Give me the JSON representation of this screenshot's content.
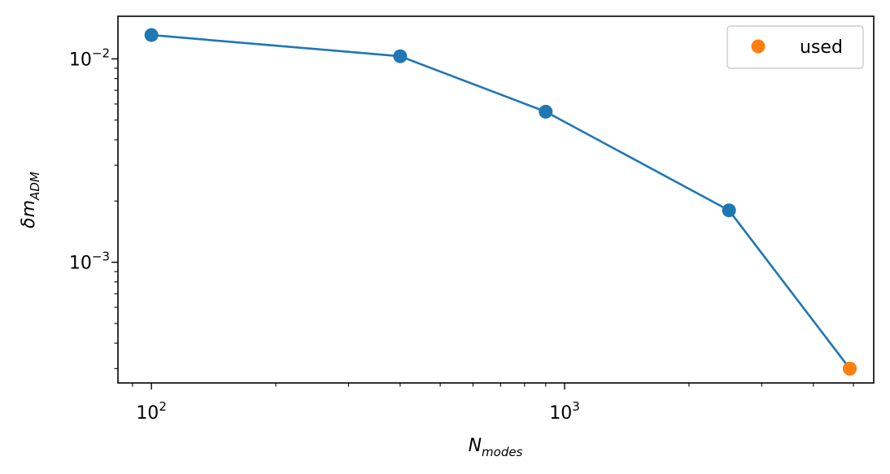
{
  "chart_data": {
    "type": "line",
    "x_scale": "log",
    "y_scale": "log",
    "xlim": [
      83,
      5600
    ],
    "ylim": [
      0.000255,
      0.0162
    ],
    "xlabel": {
      "base": "N",
      "sub": "modes"
    },
    "ylabel": {
      "base": "δm",
      "sub": "ADM"
    },
    "x_ticks": [
      {
        "value": 100,
        "base": "10",
        "exp": "2"
      },
      {
        "value": 1000,
        "base": "10",
        "exp": "3"
      }
    ],
    "y_ticks": [
      {
        "value": 0.01,
        "base": "10",
        "exp": "−2"
      },
      {
        "value": 0.001,
        "base": "10",
        "exp": "−3"
      }
    ],
    "series": [
      {
        "color": "#1f77b4",
        "x": [
          100,
          400,
          900,
          2500,
          4900
        ],
        "y": [
          0.0131,
          0.0103,
          0.0055,
          0.0018,
          0.0003
        ]
      },
      {
        "name": "used",
        "color": "#ff7f0e",
        "markers_only": true,
        "x": [
          4900
        ],
        "y": [
          0.0003
        ]
      }
    ],
    "grid": false,
    "legend": {
      "position": "top-right",
      "entries": [
        {
          "label": "used",
          "color": "#ff7f0e"
        }
      ]
    }
  }
}
